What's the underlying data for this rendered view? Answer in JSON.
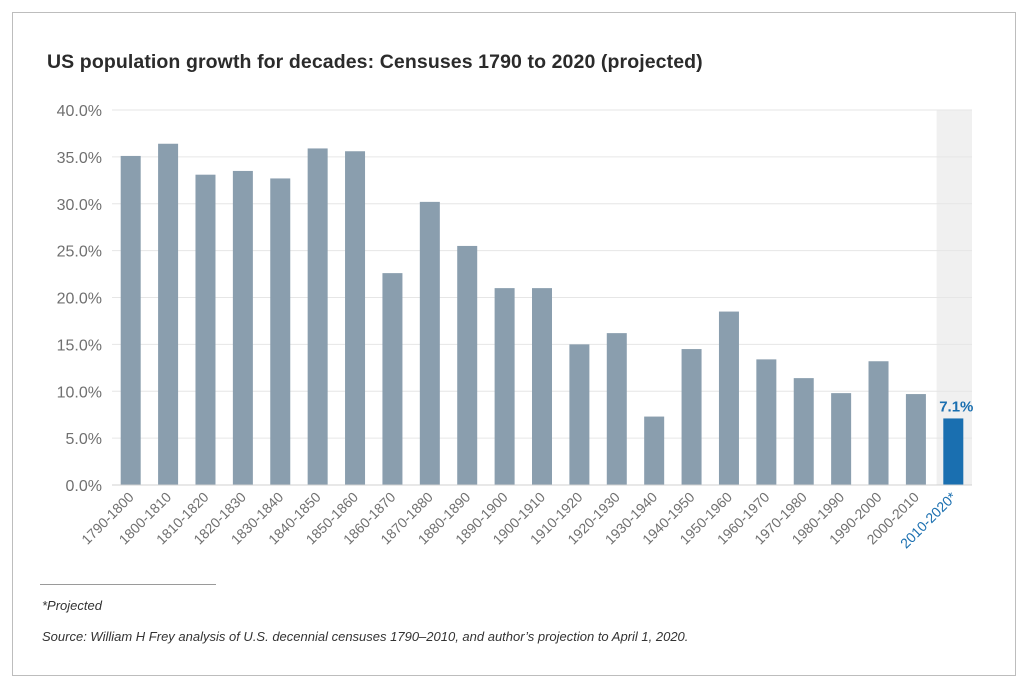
{
  "chart_data": {
    "type": "bar",
    "title": "US population growth for decades: Censuses 1790 to 2020 (projected)",
    "xlabel": "",
    "ylabel": "",
    "ylim": [
      0,
      40
    ],
    "yticks": [
      "0.0%",
      "5.0%",
      "10.0%",
      "15.0%",
      "20.0%",
      "25.0%",
      "30.0%",
      "35.0%",
      "40.0%"
    ],
    "grid": true,
    "categories": [
      "1790-1800",
      "1800-1810",
      "1810-1820",
      "1820-1830",
      "1830-1840",
      "1840-1850",
      "1850-1860",
      "1860-1870",
      "1870-1880",
      "1880-1890",
      "1890-1900",
      "1900-1910",
      "1910-1920",
      "1920-1930",
      "1930-1940",
      "1940-1950",
      "1950-1960",
      "1960-1970",
      "1970-1980",
      "1980-1990",
      "1990-2000",
      "2000-2010",
      "2010-2020*"
    ],
    "values": [
      35.1,
      36.4,
      33.1,
      33.5,
      32.7,
      35.9,
      35.6,
      22.6,
      30.2,
      25.5,
      21.0,
      21.0,
      15.0,
      16.2,
      7.3,
      14.5,
      18.5,
      13.4,
      11.4,
      9.8,
      13.2,
      9.7,
      7.1
    ],
    "highlight": {
      "category": "2010-2020*",
      "label": "7.1%"
    },
    "colors": {
      "bar": "#8a9eae",
      "highlight": "#1a6fb0",
      "highlight_band": "#f0f0f0",
      "highlight_text": "#1a6fb0",
      "grid": "#e6e6e6",
      "tick_text": "#707070"
    }
  },
  "footnotes": {
    "projected_note": "*Projected",
    "source": "Source: William H Frey analysis of U.S. decennial censuses 1790–2010, and author’s projection to April 1, 2020."
  }
}
